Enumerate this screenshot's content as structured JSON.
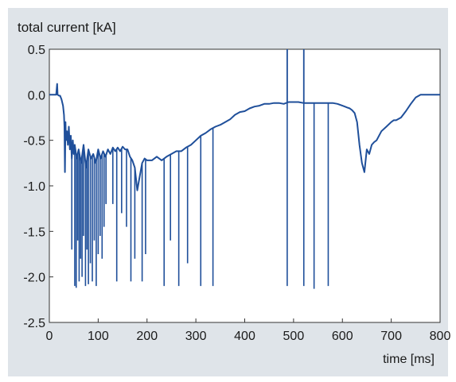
{
  "chart_data": {
    "type": "line",
    "title": "",
    "ylabel": "total current [kA]",
    "xlabel": "time [ms]",
    "xlim": [
      0,
      800
    ],
    "ylim": [
      -2.5,
      0.5
    ],
    "x_ticks": [
      0,
      100,
      200,
      300,
      400,
      500,
      600,
      700,
      800
    ],
    "y_ticks": [
      0.5,
      0.0,
      -0.5,
      -1.0,
      -1.5,
      -2.0,
      -2.5
    ],
    "x_tick_labels": [
      "0",
      "100",
      "200",
      "300",
      "400",
      "500",
      "600",
      "700",
      "800"
    ],
    "y_tick_labels": [
      "0.5",
      "0.0",
      "-0.5",
      "-1.0",
      "-1.5",
      "-2.0",
      "-2.5"
    ],
    "grid": false,
    "line_color": "#1f4f9a",
    "series": [
      {
        "x": [
          0,
          10,
          14,
          16,
          17,
          20,
          22,
          25,
          28,
          30,
          31,
          32,
          33,
          34,
          36,
          38,
          40,
          42,
          44,
          46,
          48,
          50,
          52,
          56,
          60,
          65,
          70,
          75,
          80,
          85,
          90,
          95,
          100,
          105,
          110,
          115,
          120,
          125,
          130,
          135,
          140,
          145,
          150,
          155,
          160,
          165,
          170,
          175,
          180,
          185,
          190,
          195,
          200,
          210,
          220,
          230,
          240,
          250,
          260,
          270,
          280,
          290,
          300,
          310,
          320,
          330,
          340,
          350,
          360,
          370,
          380,
          390,
          400,
          410,
          420,
          430,
          440,
          450,
          460,
          470,
          480,
          490,
          500,
          510,
          520,
          530,
          540,
          550,
          560,
          570,
          580,
          590,
          600,
          605,
          610,
          615,
          620,
          625,
          630,
          635,
          640,
          645,
          650,
          655,
          660,
          665,
          670,
          680,
          690,
          700,
          705,
          710,
          720,
          730,
          740,
          750,
          760,
          770,
          780,
          790,
          800
        ],
        "y": [
          0.0,
          0.0,
          0.0,
          0.12,
          0.0,
          -0.01,
          -0.01,
          -0.05,
          -0.12,
          -0.22,
          -0.35,
          -0.85,
          -0.3,
          -0.5,
          -0.4,
          -0.55,
          -0.35,
          -0.6,
          -0.45,
          -0.7,
          -0.5,
          -0.65,
          -0.55,
          -0.7,
          -0.6,
          -0.75,
          -0.55,
          -0.8,
          -0.6,
          -0.7,
          -0.65,
          -0.75,
          -0.6,
          -0.7,
          -0.62,
          -0.68,
          -0.6,
          -0.65,
          -0.58,
          -0.62,
          -0.58,
          -0.62,
          -0.57,
          -0.6,
          -0.6,
          -0.68,
          -0.72,
          -0.8,
          -1.05,
          -0.9,
          -0.75,
          -0.7,
          -0.72,
          -0.72,
          -0.68,
          -0.72,
          -0.68,
          -0.65,
          -0.62,
          -0.62,
          -0.58,
          -0.55,
          -0.5,
          -0.45,
          -0.42,
          -0.38,
          -0.35,
          -0.33,
          -0.3,
          -0.27,
          -0.22,
          -0.19,
          -0.18,
          -0.15,
          -0.13,
          -0.12,
          -0.1,
          -0.1,
          -0.09,
          -0.09,
          -0.1,
          -0.08,
          -0.08,
          -0.08,
          -0.09,
          -0.09,
          -0.09,
          -0.09,
          -0.09,
          -0.09,
          -0.09,
          -0.1,
          -0.12,
          -0.13,
          -0.14,
          -0.15,
          -0.17,
          -0.2,
          -0.3,
          -0.55,
          -0.75,
          -0.85,
          -0.6,
          -0.65,
          -0.55,
          -0.52,
          -0.5,
          -0.4,
          -0.35,
          -0.3,
          -0.28,
          -0.28,
          -0.25,
          -0.18,
          -0.1,
          -0.03,
          0.0,
          0.0,
          0.0,
          0.0,
          0.0
        ]
      }
    ],
    "spikes": [
      {
        "x": 46,
        "y": -1.7
      },
      {
        "x": 52,
        "y": -2.1
      },
      {
        "x": 55,
        "y": -2.12
      },
      {
        "x": 58,
        "y": -1.6
      },
      {
        "x": 61,
        "y": -2.05
      },
      {
        "x": 64,
        "y": -1.8
      },
      {
        "x": 67,
        "y": -2.0
      },
      {
        "x": 70,
        "y": -1.55
      },
      {
        "x": 74,
        "y": -2.1
      },
      {
        "x": 77,
        "y": -1.7
      },
      {
        "x": 80,
        "y": -2.08
      },
      {
        "x": 84,
        "y": -1.85
      },
      {
        "x": 88,
        "y": -2.05
      },
      {
        "x": 92,
        "y": -1.6
      },
      {
        "x": 96,
        "y": -2.1
      },
      {
        "x": 100,
        "y": -1.75
      },
      {
        "x": 104,
        "y": -1.55
      },
      {
        "x": 108,
        "y": -1.8
      },
      {
        "x": 112,
        "y": -1.45
      },
      {
        "x": 116,
        "y": -1.2
      },
      {
        "x": 130,
        "y": -1.2
      },
      {
        "x": 138,
        "y": -2.05
      },
      {
        "x": 148,
        "y": -1.3
      },
      {
        "x": 158,
        "y": -1.45
      },
      {
        "x": 167,
        "y": -2.05
      },
      {
        "x": 175,
        "y": -1.8
      },
      {
        "x": 190,
        "y": -2.05
      },
      {
        "x": 197,
        "y": -1.75
      },
      {
        "x": 235,
        "y": -2.1
      },
      {
        "x": 248,
        "y": -1.6
      },
      {
        "x": 265,
        "y": -2.1
      },
      {
        "x": 283,
        "y": -1.85
      },
      {
        "x": 310,
        "y": -2.1
      },
      {
        "x": 335,
        "y": -2.1
      },
      {
        "x": 487,
        "y": -2.1
      },
      {
        "x": 521,
        "y": -2.1
      },
      {
        "x": 542,
        "y": -2.13
      },
      {
        "x": 571,
        "y": -2.1
      }
    ],
    "upward_spikes": [
      {
        "x": 487,
        "y": 0.5
      },
      {
        "x": 521,
        "y": 0.5
      }
    ]
  }
}
